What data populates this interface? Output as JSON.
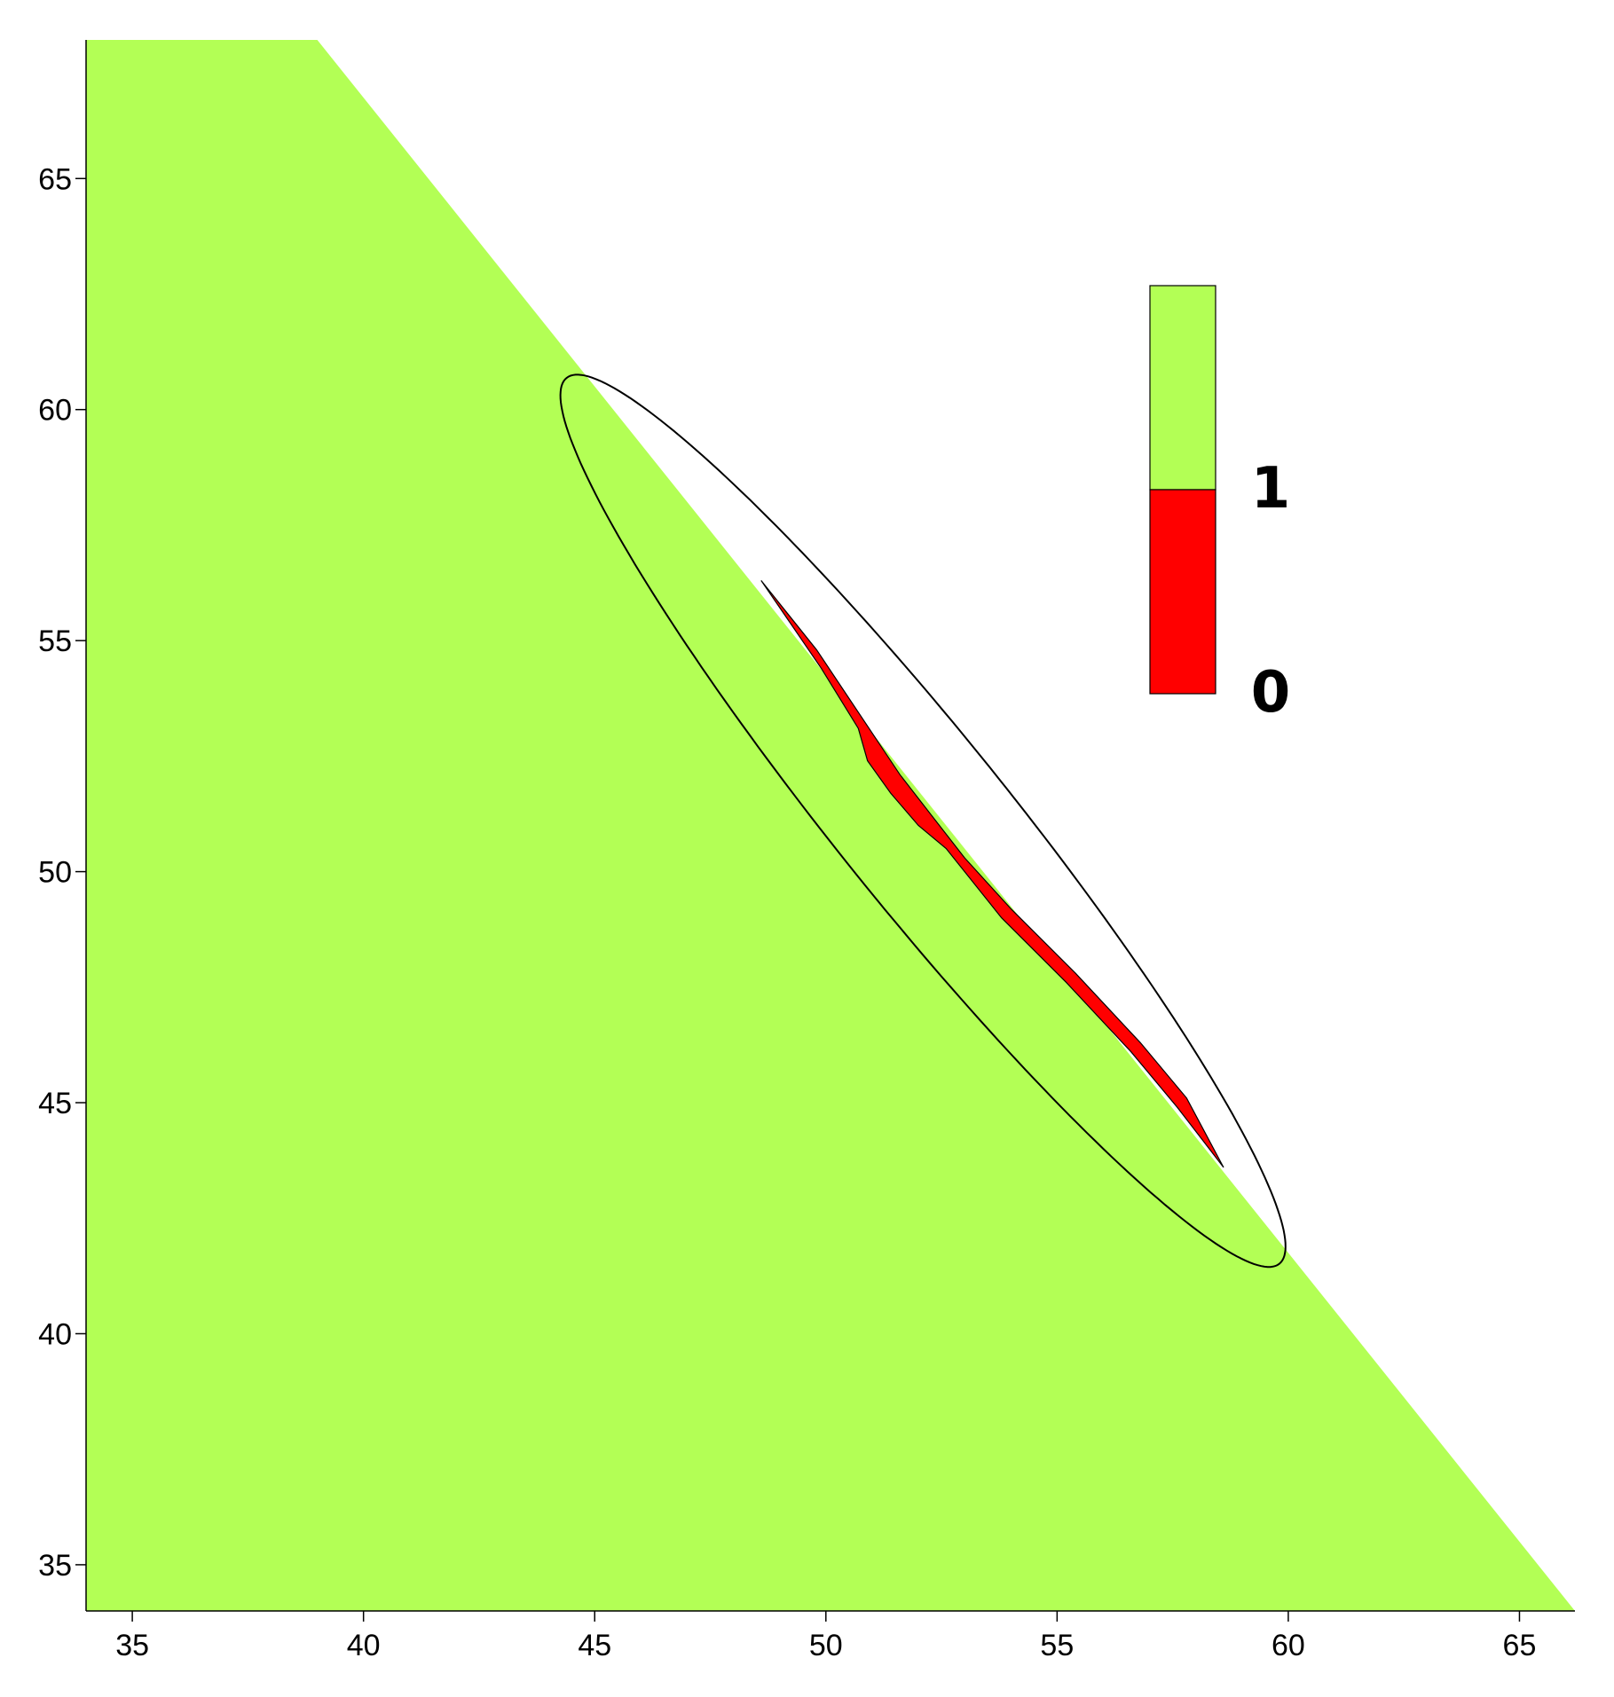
{
  "chart_data": {
    "type": "heatmap",
    "title": "",
    "xlabel": "",
    "ylabel": "",
    "xlim": [
      34.0,
      66.2
    ],
    "ylim": [
      34.0,
      68.0
    ],
    "x_ticks": [
      35,
      40,
      45,
      50,
      55,
      60,
      65
    ],
    "y_ticks": [
      35,
      40,
      45,
      50,
      55,
      60,
      65
    ],
    "grid": false,
    "colors": {
      "value_1": "#b3ff55",
      "value_0": "#ff0000",
      "ellipse": "#000000",
      "background": "#ffffff"
    },
    "regions": [
      {
        "value": 1,
        "boundary": [
          [
            34.0,
            68.0
          ],
          [
            39.0,
            68.0
          ],
          [
            66.2,
            34.0
          ],
          [
            34.0,
            34.0
          ]
        ]
      },
      {
        "value": 0,
        "boundary": [
          [
            48.6,
            56.3
          ],
          [
            49.8,
            54.8
          ],
          [
            50.8,
            53.3
          ],
          [
            51.6,
            52.1
          ],
          [
            52.3,
            51.2
          ],
          [
            53.0,
            50.3
          ],
          [
            54.0,
            49.2
          ],
          [
            55.4,
            47.8
          ],
          [
            56.8,
            46.3
          ],
          [
            57.8,
            45.1
          ],
          [
            58.6,
            43.6
          ],
          [
            57.6,
            44.9
          ],
          [
            56.6,
            46.1
          ],
          [
            55.2,
            47.6
          ],
          [
            53.8,
            49.0
          ],
          [
            52.6,
            50.5
          ],
          [
            52.0,
            51.0
          ],
          [
            51.4,
            51.7
          ],
          [
            50.9,
            52.4
          ],
          [
            50.7,
            53.1
          ],
          [
            49.9,
            54.4
          ],
          [
            48.6,
            56.3
          ]
        ]
      }
    ],
    "annotations": [
      {
        "shape": "ellipse",
        "center": [
          52.1,
          51.1
        ],
        "semi_axes": [
          12.3,
          1.85
        ],
        "rotation_deg": -51.2
      }
    ],
    "colorbar": {
      "placement": "top-right, inside plot",
      "levels": [
        {
          "value": 0,
          "label": "0",
          "color": "#ff0000"
        },
        {
          "value": 1,
          "label": "1",
          "color": "#b3ff55"
        }
      ]
    }
  }
}
